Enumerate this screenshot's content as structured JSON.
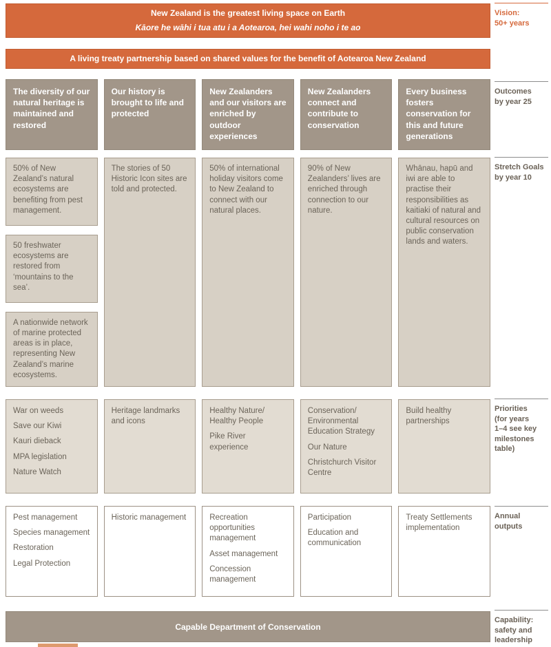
{
  "vision": {
    "line_en": "New Zealand is the greatest living space on Earth",
    "line_maori": "Kāore he wāhi i tua atu i a Aotearoa, hei wahi noho i te ao"
  },
  "treaty": {
    "text": "A living treaty partnership based on shared values for the benefit of Aotearoa New Zealand"
  },
  "columns": [
    {
      "outcome": "The diversity of our natural heritage is maintained and restored",
      "stretch_goals": [
        "50% of New Zealand’s natural ecosystems are benefiting from pest management.",
        "50 freshwater ecosystems are restored from ‘mountains to the sea’.",
        "A nationwide network of marine protected areas is in place, representing New Zealand’s marine ecosystems."
      ],
      "priorities": [
        "War on weeds",
        "Save our Kiwi",
        "Kauri dieback",
        "MPA legislation",
        "Nature Watch"
      ],
      "annual_outputs": [
        "Pest management",
        "Species management",
        "Restoration",
        "Legal Protection"
      ]
    },
    {
      "outcome": "Our history is brought to life and protected",
      "stretch_goals": [
        "The stories of 50 Historic Icon sites are told and protected."
      ],
      "priorities": [
        "Heritage landmarks and icons"
      ],
      "annual_outputs": [
        "Historic management"
      ]
    },
    {
      "outcome": "New Zealanders and our visitors are enriched by outdoor experiences",
      "stretch_goals": [
        "50% of international holiday visitors come to New Zealand to connect with our natural places."
      ],
      "priorities": [
        "Healthy Nature/ Healthy People",
        "Pike River experience"
      ],
      "annual_outputs": [
        "Recreation opportunities management",
        "Asset management",
        "Concession management"
      ]
    },
    {
      "outcome": "New Zealanders connect and contribute to conservation",
      "stretch_goals": [
        "90% of New Zealanders’ lives are enriched through connection to our nature."
      ],
      "priorities": [
        "Conservation/ Environmental Education Strategy",
        "Our Nature",
        "Christchurch Visitor Centre"
      ],
      "annual_outputs": [
        "Participation",
        "Education and communication"
      ]
    },
    {
      "outcome": "Every business fosters conservation for this and future generations",
      "stretch_goals": [
        "Whānau, hapū and iwi are able to practise their responsibilities as kaitiaki of natural and cultural resources on public conservation lands and waters."
      ],
      "priorities": [
        "Build healthy partnerships"
      ],
      "annual_outputs": [
        "Treaty Settlements implementation"
      ]
    }
  ],
  "capability": {
    "text": "Capable Department of Conservation"
  },
  "sidebar": {
    "vision": "Vision:\n50+ years",
    "outcomes": "Outcomes\nby year 25",
    "stretch": "Stretch Goals\nby year 10",
    "priorities": "Priorities\n(for years\n1–4 see key\nmilestones\ntable)",
    "annual": "Annual\noutputs",
    "capability": "Capability:\nsafety and\nleadership"
  },
  "colors": {
    "accent_orange": "#d5693c",
    "header_taupe": "#a29689",
    "stretch_box_bg": "#d7d0c5",
    "priorities_box_bg": "#e2dcd2",
    "output_box_bg": "#ffffff",
    "box_border": "#a79c8d",
    "body_text": "#6b6459",
    "side_label_text": "#6a6156",
    "side_line": "#8c8c8c"
  }
}
